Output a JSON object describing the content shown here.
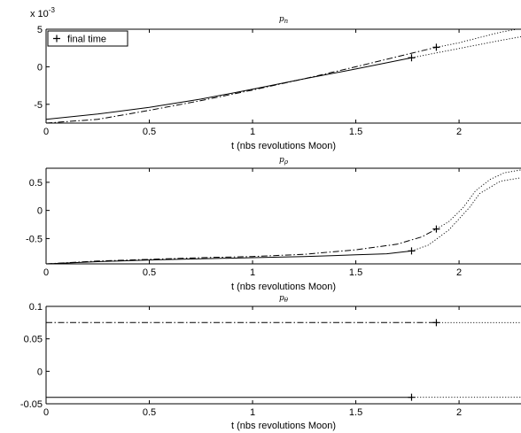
{
  "chart_data": [
    {
      "type": "line",
      "title": "p_n",
      "title_main": "p",
      "title_sub": "n",
      "xlabel": "t (nbs revolutions Moon)",
      "ylabel": "",
      "scale_label_base": "x 10",
      "scale_label_exp": "-3",
      "xlim": [
        0,
        2.3
      ],
      "ylim": [
        -7.5,
        5
      ],
      "x_ticks": [
        "0",
        "0.5",
        "1",
        "1.5",
        "2"
      ],
      "y_ticks": [
        {
          "v": 5,
          "label": "5"
        },
        {
          "v": 0,
          "label": "0"
        },
        {
          "v": -5,
          "label": "-5"
        }
      ],
      "legend": {
        "label": "final time",
        "placement": "top-left"
      },
      "series": [
        {
          "style": "solid",
          "x": [
            0,
            0.25,
            0.5,
            0.75,
            1.0,
            1.25,
            1.5,
            1.77
          ],
          "y": [
            -7.0,
            -6.3,
            -5.4,
            -4.3,
            -3.0,
            -1.6,
            -0.3,
            1.2
          ],
          "final": [
            1.77,
            1.2
          ]
        },
        {
          "style": "dashdot",
          "x": [
            0,
            0.25,
            0.5,
            0.75,
            1.0,
            1.25,
            1.5,
            1.77,
            1.89
          ],
          "y": [
            -7.5,
            -7.0,
            -5.8,
            -4.5,
            -3.1,
            -1.6,
            0.0,
            1.8,
            2.6
          ],
          "final": [
            1.89,
            2.6
          ]
        },
        {
          "style": "dotted",
          "x": [
            1.77,
            1.9,
            2.05,
            2.2,
            2.3
          ],
          "y": [
            1.2,
            1.9,
            2.7,
            3.5,
            4.0
          ]
        },
        {
          "style": "dotted",
          "x": [
            1.89,
            2.0,
            2.1,
            2.2,
            2.3
          ],
          "y": [
            2.6,
            3.2,
            3.9,
            4.6,
            5.1
          ]
        }
      ]
    },
    {
      "type": "line",
      "title": "p_ρ",
      "title_main": "p",
      "title_sub": "ρ",
      "xlabel": "t (nbs revolutions Moon)",
      "ylabel": "",
      "xlim": [
        0,
        2.3
      ],
      "ylim": [
        -0.95,
        0.75
      ],
      "x_ticks": [
        "0",
        "0.5",
        "1",
        "1.5",
        "2"
      ],
      "y_ticks": [
        {
          "v": 0.5,
          "label": "0.5"
        },
        {
          "v": 0,
          "label": "0"
        },
        {
          "v": -0.5,
          "label": "-0.5"
        }
      ],
      "series": [
        {
          "style": "solid",
          "x": [
            0,
            0.25,
            0.5,
            0.75,
            1.0,
            1.25,
            1.5,
            1.65,
            1.77
          ],
          "y": [
            -0.95,
            -0.91,
            -0.88,
            -0.86,
            -0.84,
            -0.82,
            -0.79,
            -0.77,
            -0.72
          ],
          "final": [
            1.77,
            -0.72
          ]
        },
        {
          "style": "dashdot",
          "x": [
            0,
            0.25,
            0.5,
            0.75,
            1.0,
            1.25,
            1.5,
            1.7,
            1.82,
            1.89
          ],
          "y": [
            -0.95,
            -0.9,
            -0.87,
            -0.84,
            -0.82,
            -0.78,
            -0.7,
            -0.6,
            -0.47,
            -0.33
          ],
          "final": [
            1.89,
            -0.33
          ]
        },
        {
          "style": "dotted",
          "x": [
            1.77,
            1.85,
            1.95,
            2.05,
            2.1,
            2.2,
            2.3
          ],
          "y": [
            -0.72,
            -0.62,
            -0.35,
            0.05,
            0.3,
            0.52,
            0.58
          ]
        },
        {
          "style": "dotted",
          "x": [
            1.89,
            1.95,
            2.02,
            2.08,
            2.15,
            2.22,
            2.3
          ],
          "y": [
            -0.33,
            -0.2,
            0.05,
            0.35,
            0.55,
            0.67,
            0.72
          ]
        }
      ]
    },
    {
      "type": "line",
      "title": "p_θ",
      "title_main": "p",
      "title_sub": "θ",
      "xlabel": "t (nbs revolutions Moon)",
      "ylabel": "",
      "xlim": [
        0,
        2.3
      ],
      "ylim": [
        -0.05,
        0.1
      ],
      "x_ticks": [
        "0",
        "0.5",
        "1",
        "1.5",
        "2"
      ],
      "y_ticks": [
        {
          "v": 0.1,
          "label": "0.1"
        },
        {
          "v": 0.05,
          "label": "0.05"
        },
        {
          "v": 0,
          "label": "0"
        },
        {
          "v": -0.05,
          "label": "-0.05"
        }
      ],
      "series": [
        {
          "style": "solid",
          "x": [
            0,
            1.77
          ],
          "y": [
            -0.04,
            -0.04
          ],
          "final": [
            1.77,
            -0.04
          ]
        },
        {
          "style": "dashdot",
          "x": [
            0,
            1.89
          ],
          "y": [
            0.075,
            0.075
          ],
          "final": [
            1.89,
            0.075
          ]
        },
        {
          "style": "dotted",
          "x": [
            1.77,
            2.3
          ],
          "y": [
            -0.04,
            -0.04
          ]
        },
        {
          "style": "dotted",
          "x": [
            1.89,
            2.3
          ],
          "y": [
            0.075,
            0.075
          ]
        }
      ]
    }
  ]
}
